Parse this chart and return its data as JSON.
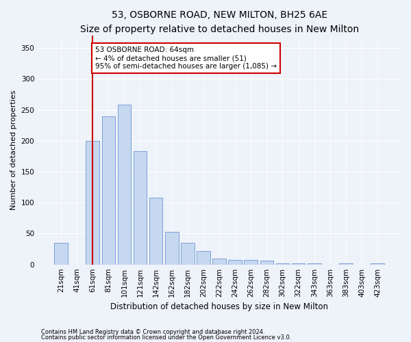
{
  "title1": "53, OSBORNE ROAD, NEW MILTON, BH25 6AE",
  "title2": "Size of property relative to detached houses in New Milton",
  "xlabel": "Distribution of detached houses by size in New Milton",
  "ylabel": "Number of detached properties",
  "categories": [
    "21sqm",
    "41sqm",
    "61sqm",
    "81sqm",
    "101sqm",
    "121sqm",
    "142sqm",
    "162sqm",
    "182sqm",
    "202sqm",
    "222sqm",
    "242sqm",
    "262sqm",
    "282sqm",
    "302sqm",
    "322sqm",
    "343sqm",
    "363sqm",
    "383sqm",
    "403sqm",
    "423sqm"
  ],
  "values": [
    35,
    0,
    200,
    240,
    258,
    183,
    108,
    53,
    35,
    22,
    10,
    7,
    7,
    6,
    2,
    2,
    2,
    0,
    2,
    0,
    2
  ],
  "bar_color": "#c5d8f0",
  "bar_edge_color": "#5588cc",
  "bar_width": 0.85,
  "vline_x_index": 2,
  "vline_color": "#cc0000",
  "annotation_line1": "53 OSBORNE ROAD: 64sqm",
  "annotation_line2": "← 4% of detached houses are smaller (51)",
  "annotation_line3": "95% of semi-detached houses are larger (1,085) →",
  "annotation_box_color": "#ffffff",
  "annotation_box_edge_color": "#cc0000",
  "ylim": [
    0,
    370
  ],
  "yticks": [
    0,
    50,
    100,
    150,
    200,
    250,
    300,
    350
  ],
  "footnote1": "Contains HM Land Registry data © Crown copyright and database right 2024.",
  "footnote2": "Contains public sector information licensed under the Open Government Licence v3.0.",
  "bg_color": "#eef2f9",
  "plot_bg_color": "#eef2f9",
  "grid_color": "#ffffff",
  "title1_fontsize": 10,
  "title2_fontsize": 9,
  "axis_label_fontsize": 8,
  "tick_fontsize": 7.5,
  "annotation_fontsize": 7.5
}
